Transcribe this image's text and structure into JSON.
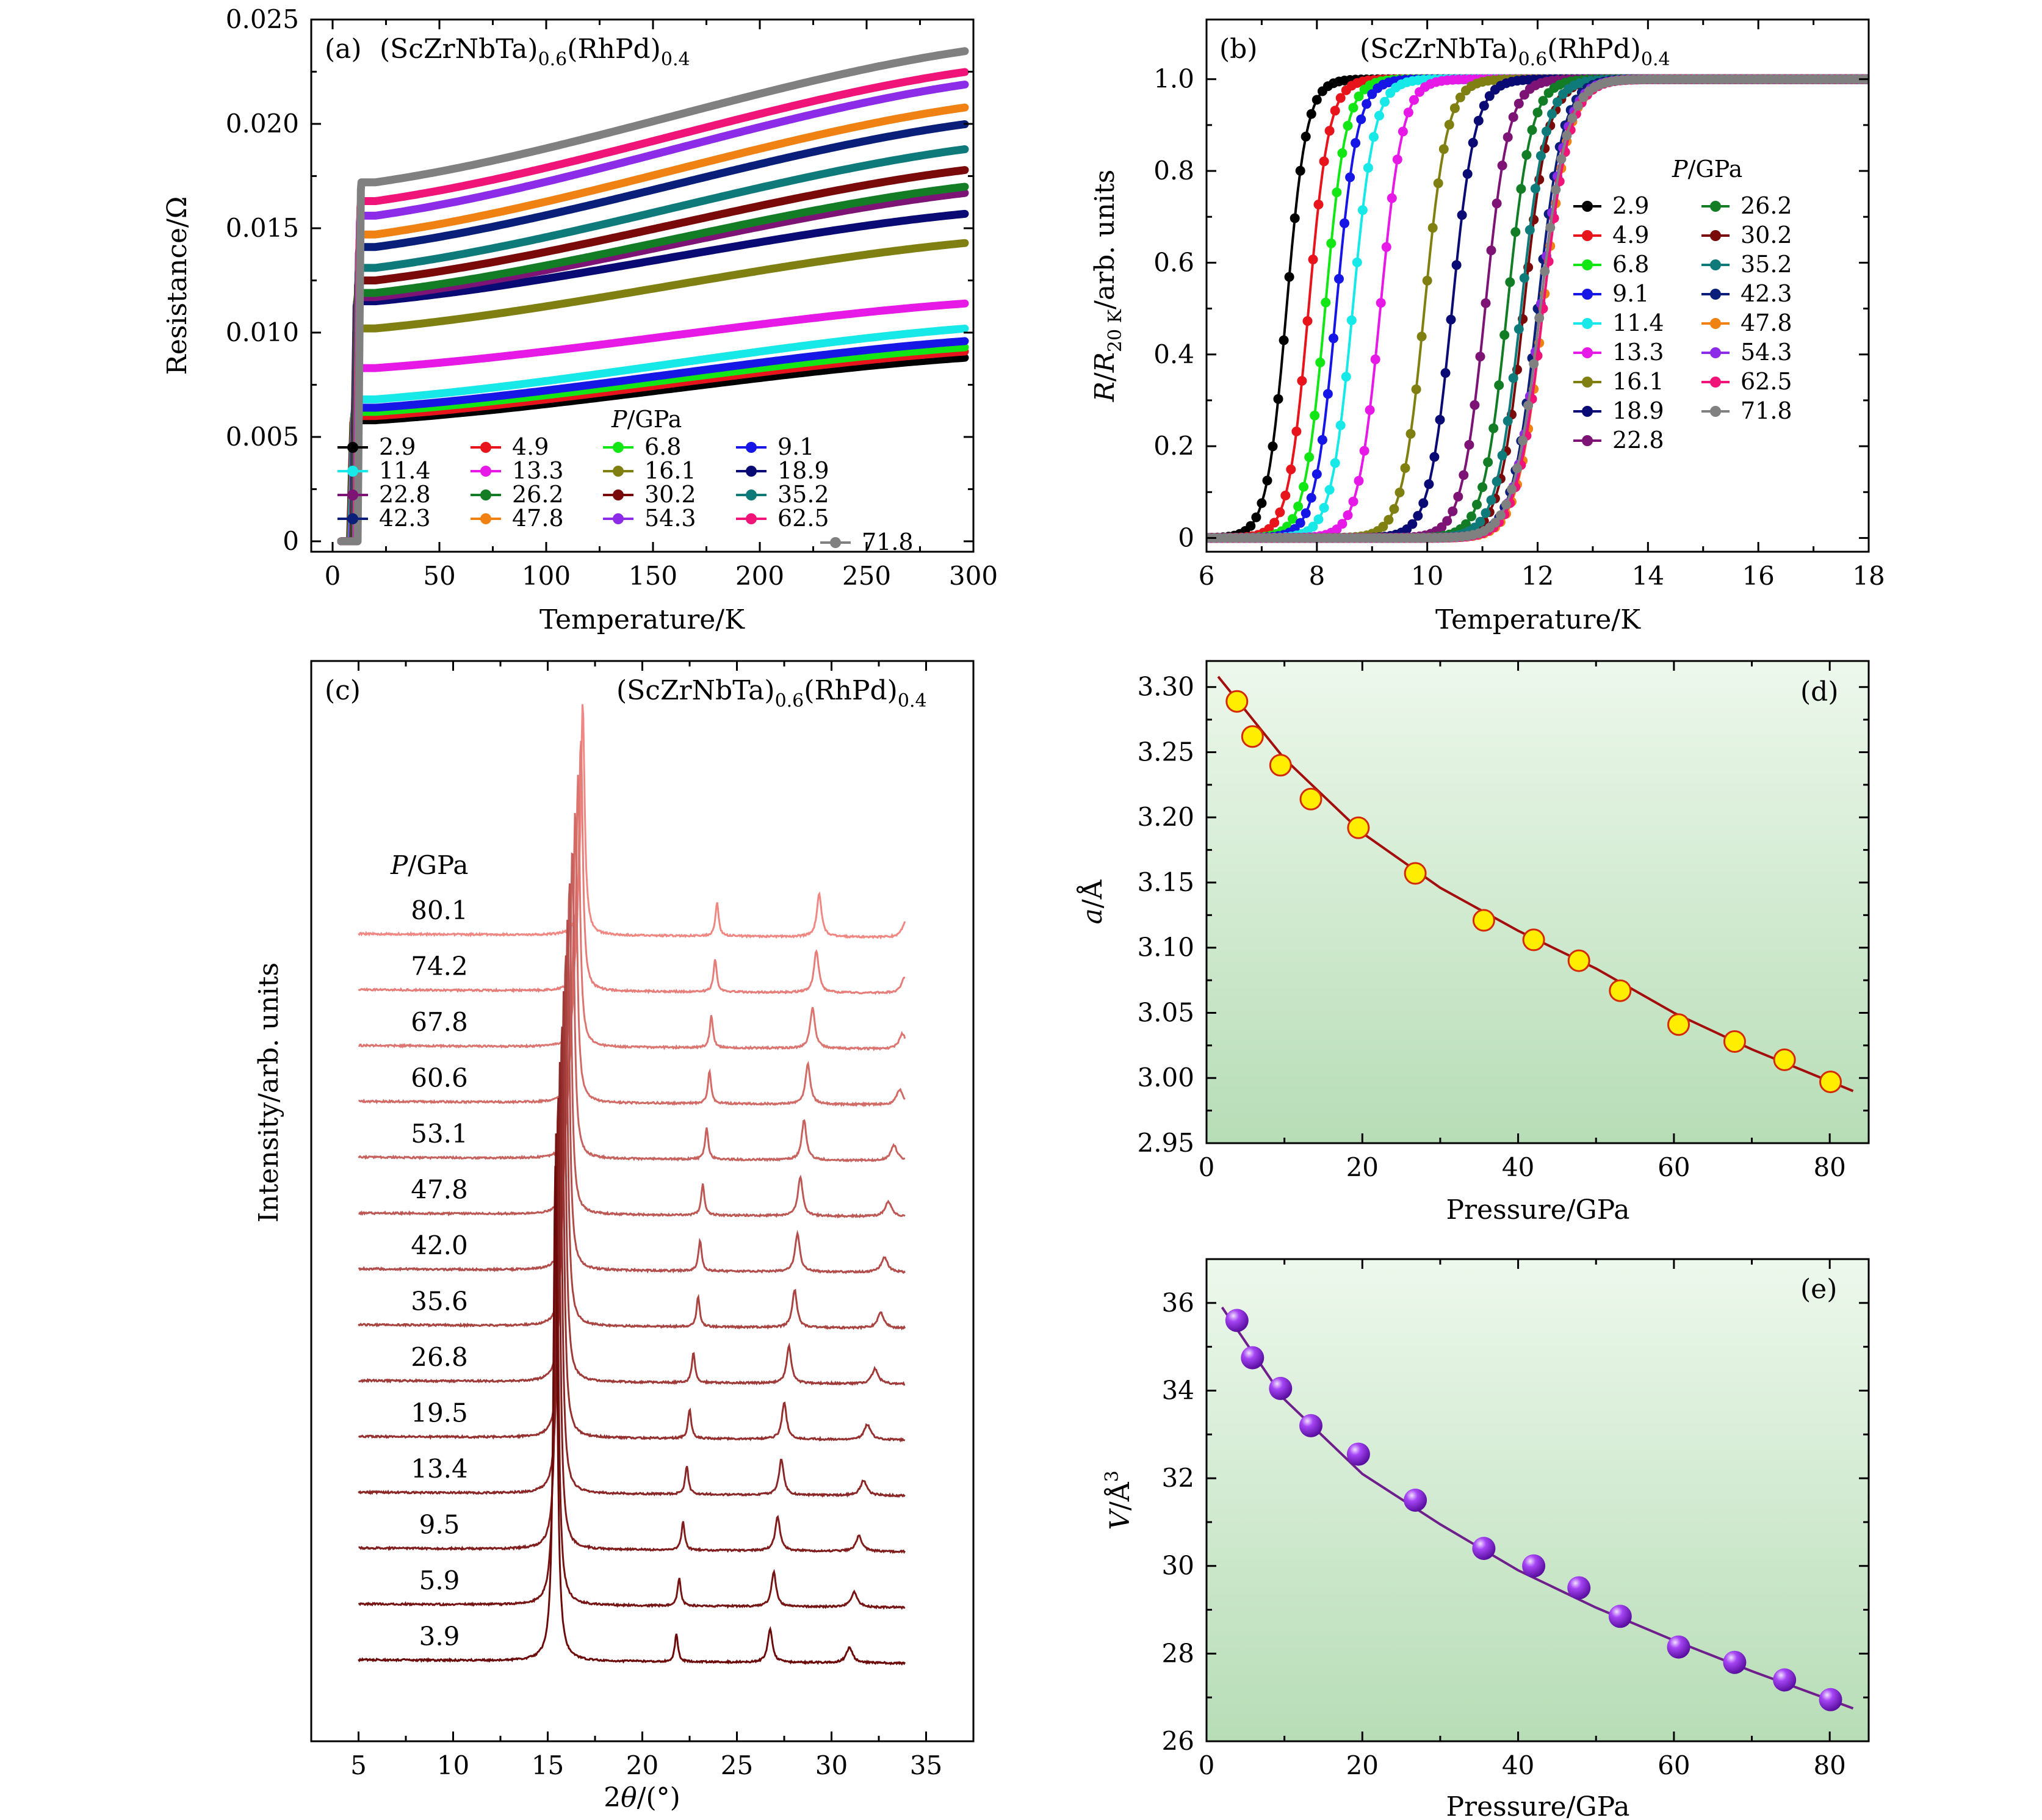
{
  "figure": {
    "compound": "(ScZrNbTa)",
    "sub1": "0.6",
    "compound2": "(RhPd)",
    "sub2": "0.4"
  },
  "chart_data": [
    {
      "id": "a",
      "label": "(a)",
      "type": "line",
      "xlabel": "Temperature/K",
      "ylabel": "Resistance/Ω",
      "xlim": [
        -10,
        300
      ],
      "ylim": [
        -0.0005,
        0.025
      ],
      "xticks": [
        0,
        50,
        100,
        150,
        200,
        250,
        300
      ],
      "yticks": [
        0,
        0.005,
        0.01,
        0.015,
        0.02,
        0.025
      ],
      "yticklabels": [
        "0",
        "0.005",
        "0.010",
        "0.015",
        "0.020",
        "0.025"
      ],
      "legend_title": "P/GPa",
      "legend_position": "bottom",
      "series": [
        {
          "name": "2.9",
          "color": "#000000",
          "r20": 0.0058,
          "r300": 0.0088
        },
        {
          "name": "4.9",
          "color": "#e8141b",
          "r20": 0.006,
          "r300": 0.0091
        },
        {
          "name": "6.8",
          "color": "#12e615",
          "r20": 0.0062,
          "r300": 0.0093
        },
        {
          "name": "9.1",
          "color": "#1616e6",
          "r20": 0.0064,
          "r300": 0.0096
        },
        {
          "name": "11.4",
          "color": "#17e8e8",
          "r20": 0.0068,
          "r300": 0.0102
        },
        {
          "name": "13.3",
          "color": "#e619e6",
          "r20": 0.0083,
          "r300": 0.0114
        },
        {
          "name": "16.1",
          "color": "#808012",
          "r20": 0.0102,
          "r300": 0.0143
        },
        {
          "name": "18.9",
          "color": "#0a0a75",
          "r20": 0.0115,
          "r300": 0.0157
        },
        {
          "name": "22.8",
          "color": "#7d1475",
          "r20": 0.0117,
          "r300": 0.0167
        },
        {
          "name": "26.2",
          "color": "#127d25",
          "r20": 0.0119,
          "r300": 0.017
        },
        {
          "name": "30.2",
          "color": "#7a0a0a",
          "r20": 0.0125,
          "r300": 0.0178
        },
        {
          "name": "35.2",
          "color": "#0f7a7a",
          "r20": 0.0131,
          "r300": 0.0188
        },
        {
          "name": "42.3",
          "color": "#0a1f7a",
          "r20": 0.0141,
          "r300": 0.02
        },
        {
          "name": "47.8",
          "color": "#f08214",
          "r20": 0.0147,
          "r300": 0.0208
        },
        {
          "name": "54.3",
          "color": "#8c2ce8",
          "r20": 0.0156,
          "r300": 0.0219
        },
        {
          "name": "62.5",
          "color": "#f01478",
          "r20": 0.0163,
          "r300": 0.0225
        },
        {
          "name": "71.8",
          "color": "#808080",
          "r20": 0.0172,
          "r300": 0.0235
        }
      ]
    },
    {
      "id": "b",
      "label": "(b)",
      "type": "line",
      "xlabel": "Temperature/K",
      "ylabel_parts": [
        "R",
        "/",
        "R",
        "20 K",
        "/arb. units"
      ],
      "xlim": [
        6,
        18
      ],
      "ylim": [
        -0.03,
        1.13
      ],
      "xticks": [
        6,
        8,
        10,
        12,
        14,
        16,
        18
      ],
      "yticks": [
        0,
        0.2,
        0.4,
        0.6,
        0.8,
        1.0
      ],
      "yticklabels": [
        "0",
        "0.2",
        "0.4",
        "0.6",
        "0.8",
        "1.0"
      ],
      "legend_title": "P/GPa",
      "legend_position": "right",
      "series": [
        {
          "name": "2.9",
          "color": "#000000",
          "tc": 7.45
        },
        {
          "name": "4.9",
          "color": "#e8141b",
          "tc": 7.85
        },
        {
          "name": "6.8",
          "color": "#12e615",
          "tc": 8.15
        },
        {
          "name": "9.1",
          "color": "#1616e6",
          "tc": 8.35
        },
        {
          "name": "11.4",
          "color": "#17e8e8",
          "tc": 8.65
        },
        {
          "name": "13.3",
          "color": "#e619e6",
          "tc": 9.15
        },
        {
          "name": "16.1",
          "color": "#808012",
          "tc": 9.95
        },
        {
          "name": "18.9",
          "color": "#0a0a75",
          "tc": 10.45
        },
        {
          "name": "22.8",
          "color": "#7d1475",
          "tc": 11.05
        },
        {
          "name": "26.2",
          "color": "#127d25",
          "tc": 11.45
        },
        {
          "name": "30.2",
          "color": "#7a0a0a",
          "tc": 11.75
        },
        {
          "name": "35.2",
          "color": "#0f7a7a",
          "tc": 11.7
        },
        {
          "name": "42.3",
          "color": "#0a1f7a",
          "tc": 12.0
        },
        {
          "name": "47.8",
          "color": "#f08214",
          "tc": 12.1
        },
        {
          "name": "54.3",
          "color": "#8c2ce8",
          "tc": 12.05
        },
        {
          "name": "62.5",
          "color": "#f01478",
          "tc": 12.1
        },
        {
          "name": "71.8",
          "color": "#808080",
          "tc": 12.05
        }
      ]
    },
    {
      "id": "c",
      "label": "(c)",
      "type": "line",
      "xlabel": "2θ/(°)",
      "ylabel": "Intensity/arb. units",
      "xlim": [
        2.5,
        37.5
      ],
      "xticks": [
        5,
        10,
        15,
        20,
        25,
        30,
        35
      ],
      "legend_title": "P/GPa",
      "series": [
        {
          "name": "80.1",
          "peaks": [
            16.85,
            23.95,
            29.35,
            33.9
          ]
        },
        {
          "name": "74.2",
          "peaks": [
            16.75,
            23.85,
            29.2,
            33.85
          ]
        },
        {
          "name": "67.8",
          "peaks": [
            16.6,
            23.65,
            29.0,
            33.75
          ]
        },
        {
          "name": "60.6",
          "peaks": [
            16.45,
            23.55,
            28.75,
            33.6
          ]
        },
        {
          "name": "53.1",
          "peaks": [
            16.3,
            23.4,
            28.55,
            33.3
          ]
        },
        {
          "name": "47.8",
          "peaks": [
            16.15,
            23.2,
            28.35,
            33.0
          ]
        },
        {
          "name": "42.0",
          "peaks": [
            16.05,
            23.05,
            28.2,
            32.8
          ]
        },
        {
          "name": "35.6",
          "peaks": [
            15.95,
            22.95,
            28.05,
            32.6
          ]
        },
        {
          "name": "26.8",
          "peaks": [
            15.85,
            22.7,
            27.75,
            32.3
          ]
        },
        {
          "name": "19.5",
          "peaks": [
            15.75,
            22.5,
            27.5,
            31.9
          ]
        },
        {
          "name": "13.4",
          "peaks": [
            15.65,
            22.35,
            27.35,
            31.7
          ]
        },
        {
          "name": "9.5",
          "peaks": [
            15.55,
            22.15,
            27.15,
            31.45
          ]
        },
        {
          "name": "5.9",
          "peaks": [
            15.45,
            21.95,
            26.95,
            31.2
          ]
        },
        {
          "name": "3.9",
          "peaks": [
            15.4,
            21.8,
            26.75,
            30.95
          ]
        }
      ]
    },
    {
      "id": "d",
      "label": "(d)",
      "type": "scatter",
      "xlabel": "Pressure/GPa",
      "ylabel_parts": [
        "a",
        "/Å"
      ],
      "xlim": [
        0,
        85
      ],
      "ylim": [
        2.95,
        3.32
      ],
      "xticks": [
        0,
        20,
        40,
        60,
        80
      ],
      "yticks": [
        2.95,
        3.0,
        3.05,
        3.1,
        3.15,
        3.2,
        3.25,
        3.3
      ],
      "yticklabels": [
        "2.95",
        "3.00",
        "3.05",
        "3.10",
        "3.15",
        "3.20",
        "3.25",
        "3.30"
      ],
      "x": [
        3.9,
        5.9,
        9.5,
        13.4,
        19.5,
        26.8,
        35.6,
        42.0,
        47.8,
        53.1,
        60.6,
        67.8,
        74.2,
        80.1
      ],
      "y": [
        3.289,
        3.262,
        3.24,
        3.214,
        3.192,
        3.157,
        3.121,
        3.106,
        3.09,
        3.067,
        3.041,
        3.028,
        3.014,
        2.997
      ],
      "fit_x": [
        1.5,
        10,
        20,
        30,
        40,
        50,
        60,
        70,
        83
      ],
      "fit_y": [
        3.308,
        3.245,
        3.188,
        3.146,
        3.113,
        3.084,
        3.05,
        3.022,
        2.99
      ],
      "marker_color": "#ffee00",
      "marker_edge": "#d52a00",
      "fit_color": "#a30d0d"
    },
    {
      "id": "e",
      "label": "(e)",
      "type": "scatter",
      "xlabel": "Pressure/GPa",
      "ylabel_parts": [
        "V",
        "/Å",
        "3"
      ],
      "xlim": [
        0,
        85
      ],
      "ylim": [
        26,
        37
      ],
      "xticks": [
        0,
        20,
        40,
        60,
        80
      ],
      "yticks": [
        26,
        28,
        30,
        32,
        34,
        36
      ],
      "yticklabels": [
        "26",
        "28",
        "30",
        "32",
        "34",
        "36"
      ],
      "x": [
        3.9,
        5.9,
        9.5,
        13.4,
        19.5,
        26.8,
        35.6,
        42.0,
        47.8,
        53.1,
        60.6,
        67.8,
        74.2,
        80.1
      ],
      "y": [
        35.6,
        34.75,
        34.05,
        33.2,
        32.55,
        31.5,
        30.4,
        30.0,
        29.5,
        28.85,
        28.15,
        27.8,
        27.4,
        26.95
      ],
      "fit_x": [
        2,
        10,
        20,
        30,
        40,
        50,
        60,
        70,
        83
      ],
      "fit_y": [
        35.9,
        33.8,
        32.1,
        30.95,
        29.9,
        29.05,
        28.3,
        27.6,
        26.75
      ],
      "marker_color": "#9b2cf0",
      "fit_color": "#6e1f8c"
    }
  ]
}
